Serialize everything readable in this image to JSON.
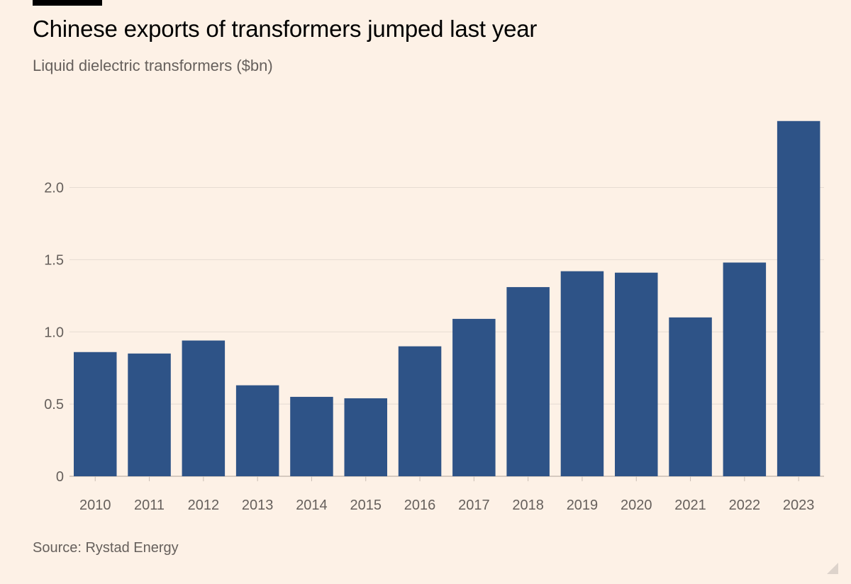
{
  "header": {
    "title": "Chinese exports of transformers jumped last year",
    "subtitle": "Liquid dielectric transformers ($bn)"
  },
  "footer": {
    "source": "Source: Rystad Energy"
  },
  "colors": {
    "background": "#fdf1e6",
    "bar": "#2e5387",
    "grid": "#e6dbd2",
    "axis_text": "#66605c"
  },
  "chart_data": {
    "type": "bar",
    "title": "Chinese exports of transformers jumped last year",
    "subtitle": "Liquid dielectric transformers ($bn)",
    "xlabel": "",
    "ylabel": "",
    "categories": [
      "2010",
      "2011",
      "2012",
      "2013",
      "2014",
      "2015",
      "2016",
      "2017",
      "2018",
      "2019",
      "2020",
      "2021",
      "2022",
      "2023"
    ],
    "values": [
      0.86,
      0.85,
      0.94,
      0.63,
      0.55,
      0.54,
      0.9,
      1.09,
      1.31,
      1.42,
      1.41,
      1.1,
      1.48,
      2.46
    ],
    "y_ticks": [
      "0",
      "0.5",
      "1.0",
      "1.5",
      "2.0"
    ],
    "y_tick_values": [
      0,
      0.5,
      1.0,
      1.5,
      2.0
    ],
    "ylim": [
      0,
      2.5
    ],
    "grid": true,
    "legend": "none"
  }
}
